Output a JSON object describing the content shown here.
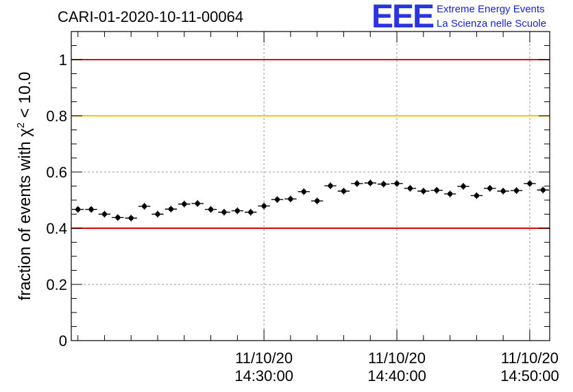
{
  "header": {
    "title": "CARI-01-2020-10-11-00064",
    "logo_text": "EEE",
    "logo_line1": "Extreme Energy Events",
    "logo_line2": "La Scienza nelle Scuole"
  },
  "colors": {
    "threshold_red": "#e00000",
    "threshold_yellow": "#ffc000",
    "points": "#000000",
    "logo": "#2a35e0"
  },
  "chart_data": {
    "type": "scatter",
    "title": "CARI-01-2020-10-11-00064",
    "xlabel": "",
    "ylabel_main": "fraction of events with ",
    "ylabel_symbol": "χ",
    "ylabel_sup": "2",
    "ylabel_tail": " < 10.0",
    "x_unit": "minutes after 14:20:00",
    "xlim": [
      -4.5,
      31.5
    ],
    "ylim": [
      0,
      1.1
    ],
    "yticks": [
      0,
      0.2,
      0.4,
      0.6,
      0.8,
      1
    ],
    "ytick_labels": [
      "0",
      "0.2",
      "0.4",
      "0.6",
      "0.8",
      "1"
    ],
    "xticks": [
      {
        "x": 10,
        "date": "11/10/20",
        "time": "14:30:00"
      },
      {
        "x": 20,
        "date": "11/10/20",
        "time": "14:40:00"
      },
      {
        "x": 30,
        "date": "11/10/20",
        "time": "14:50:00"
      }
    ],
    "grid": true,
    "reference_lines": [
      {
        "y": 1.0,
        "color": "#e00000"
      },
      {
        "y": 0.8,
        "color": "#ffc000"
      },
      {
        "y": 0.4,
        "color": "#e00000"
      }
    ],
    "bin_width": 1,
    "series": [
      {
        "name": "fraction",
        "x": [
          -4,
          -3,
          -2,
          -1,
          0,
          1,
          2,
          3,
          4,
          5,
          6,
          7,
          8,
          9,
          10,
          11,
          12,
          13,
          14,
          15,
          16,
          17,
          18,
          19,
          20,
          21,
          22,
          23,
          24,
          25,
          26,
          27,
          28,
          29,
          30,
          31
        ],
        "values": [
          0.467,
          0.467,
          0.45,
          0.438,
          0.436,
          0.478,
          0.45,
          0.468,
          0.486,
          0.488,
          0.467,
          0.457,
          0.462,
          0.457,
          0.479,
          0.502,
          0.504,
          0.53,
          0.497,
          0.551,
          0.532,
          0.559,
          0.561,
          0.557,
          0.559,
          0.542,
          0.532,
          0.535,
          0.522,
          0.549,
          0.516,
          0.542,
          0.532,
          0.534,
          0.559,
          0.536
        ],
        "errors": [
          0.012,
          0.012,
          0.012,
          0.012,
          0.012,
          0.012,
          0.012,
          0.012,
          0.012,
          0.012,
          0.012,
          0.012,
          0.012,
          0.012,
          0.012,
          0.012,
          0.012,
          0.012,
          0.012,
          0.012,
          0.012,
          0.012,
          0.012,
          0.012,
          0.012,
          0.012,
          0.012,
          0.012,
          0.012,
          0.012,
          0.012,
          0.012,
          0.012,
          0.012,
          0.012,
          0.012
        ]
      }
    ]
  }
}
